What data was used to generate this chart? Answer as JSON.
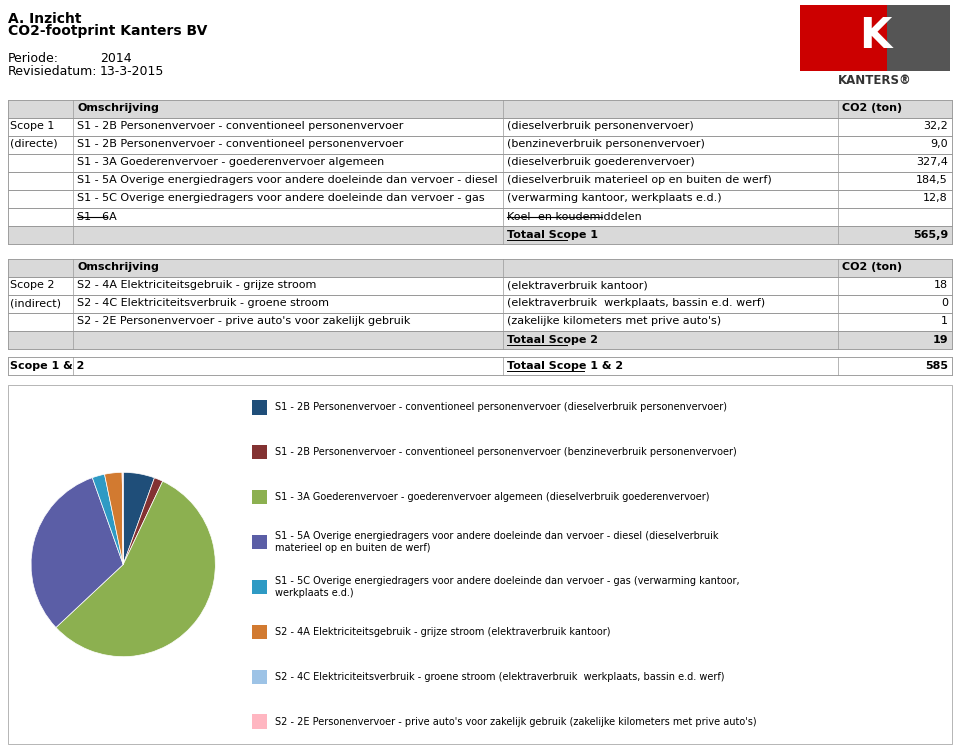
{
  "title_line1": "A. Inzicht",
  "title_line2": "CO2-footprint Kanters BV",
  "periode_label": "Periode:",
  "periode_value": "2014",
  "revisie_label": "Revisiedatum:",
  "revisie_value": "13-3-2015",
  "table1_col1": [
    "Scope 1",
    "(directe)",
    "",
    "",
    "",
    ""
  ],
  "table1_descriptions": [
    "S1 - 2B Personenvervoer - conventioneel personenvervoer",
    "S1 - 2B Personenvervoer - conventioneel personenvervoer",
    "S1 - 3A Goederenvervoer - goederenvervoer algemeen",
    "S1 - 5A Overige energiedragers voor andere doeleinde dan vervoer - diesel",
    "S1 - 5C Overige energiedragers voor andere doeleinde dan vervoer - gas",
    "S1 - 6A"
  ],
  "table1_clarifications": [
    "(dieselverbruik personenvervoer)",
    "(benzineverbruik personenvervoer)",
    "(dieselverbruik goederenvervoer)",
    "(dieselverbruik materieel op en buiten de werf)",
    "(verwarming kantoor, werkplaats e.d.)",
    "Koel- en koudemiddelen"
  ],
  "table1_values": [
    "32,2",
    "9,0",
    "327,4",
    "184,5",
    "12,8",
    ""
  ],
  "table1_total_label": "Totaal Scope 1",
  "table1_total_value": "565,9",
  "table2_col1": [
    "Scope 2",
    "(indirect)",
    ""
  ],
  "table2_descriptions": [
    "S2 - 4A Elektriciteitsgebruik - grijze stroom",
    "S2 - 4C Elektriciteitsverbruik - groene stroom",
    "S2 - 2E Personenvervoer - prive auto's voor zakelijk gebruik"
  ],
  "table2_clarifications": [
    "(elektraverbruik kantoor)",
    "(elektraverbruik  werkplaats, bassin e.d. werf)",
    "(zakelijke kilometers met prive auto's)"
  ],
  "table2_values": [
    "18",
    "0",
    "1"
  ],
  "table2_total_label": "Totaal Scope 2",
  "table2_total_value": "19",
  "scope12_label": "Scope 1 & 2",
  "scope12_total_label": "Totaal Scope 1 & 2",
  "scope12_total_value": "585",
  "pie_values": [
    32.2,
    9.0,
    327.4,
    184.5,
    12.8,
    18,
    0.001,
    1
  ],
  "pie_colors": [
    "#1F4E79",
    "#833232",
    "#8CB050",
    "#5B5EA6",
    "#2E9AC4",
    "#D27A30",
    "#9DC3E6",
    "#FFB6C1"
  ],
  "pie_labels": [
    "S1 - 2B Personenvervoer - conventioneel personenvervoer (dieselverbruik personenvervoer)",
    "S1 - 2B Personenvervoer - conventioneel personenvervoer (benzineverbruik personenvervoer)",
    "S1 - 3A Goederenvervoer - goederenvervoer algemeen (dieselverbruik goederenvervoer)",
    "S1 - 5A Overige energiedragers voor andere doeleinde dan vervoer - diesel (dieselverbruik\nmaterieel op en buiten de werf)",
    "S1 - 5C Overige energiedragers voor andere doeleinde dan vervoer - gas (verwarming kantoor,\nwerkplaats e.d.)",
    "S2 - 4A Elektriciteitsgebruik - grijze stroom (elektraverbruik kantoor)",
    "S2 - 4C Elektriciteitsverbruik - groene stroom (elektraverbruik  werkplaats, bassin e.d. werf)",
    "S2 - 2E Personenvervoer - prive auto's voor zakelijk gebruik (zakelijke kilometers met prive auto's)"
  ],
  "bg_color": "#FFFFFF",
  "table_header_bg": "#D9D9D9",
  "table_border_color": "#999999",
  "table_total_bg": "#D9D9D9"
}
